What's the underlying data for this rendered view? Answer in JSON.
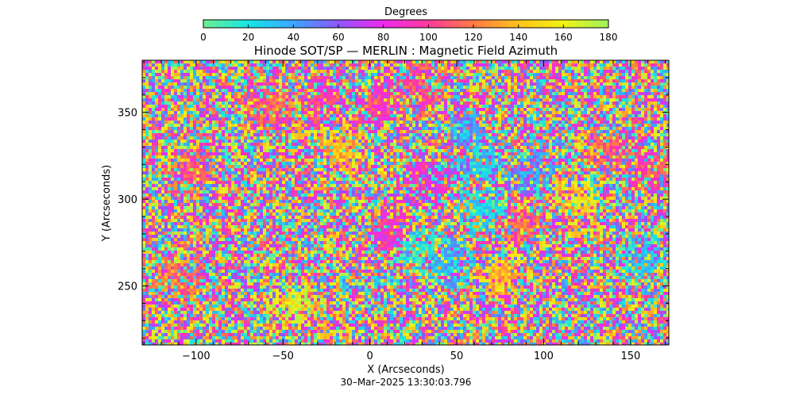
{
  "chart_data": {
    "type": "heatmap",
    "title": "Hinode SOT/SP — MERLIN : Magnetic Field Azimuth",
    "xlabel": "X (Arcseconds)",
    "ylabel": "Y (Arcseconds)",
    "xlim": [
      -131,
      172
    ],
    "ylim": [
      216,
      380
    ],
    "x_ticks": [
      -100,
      -50,
      0,
      50,
      100,
      150
    ],
    "x_tick_labels": [
      "−100",
      "−50",
      "0",
      "50",
      "100",
      "150"
    ],
    "y_ticks": [
      250,
      300,
      350
    ],
    "y_tick_labels": [
      "250",
      "300",
      "350"
    ],
    "colorbar": {
      "label": "Degrees",
      "range": [
        0,
        180
      ],
      "ticks": [
        0,
        20,
        40,
        60,
        80,
        100,
        120,
        140,
        160,
        180
      ],
      "tick_labels": [
        "0",
        "20",
        "40",
        "60",
        "80",
        "100",
        "120",
        "140",
        "160",
        "180"
      ],
      "colors": [
        "#6fef8f",
        "#14e6e6",
        "#3ca6ff",
        "#8f55ff",
        "#ee2bee",
        "#ff3b9a",
        "#ff7a44",
        "#ffc21a",
        "#f3f314",
        "#9bf25a"
      ]
    },
    "timestamp": "30–Mar–2025 13:30:03.796",
    "regions": [
      {
        "x": -110,
        "y": 255,
        "azimuth": 120
      },
      {
        "x": -105,
        "y": 315,
        "azimuth": 110
      },
      {
        "x": -30,
        "y": 358,
        "azimuth": 95
      },
      {
        "x": -15,
        "y": 330,
        "azimuth": 140
      },
      {
        "x": 5,
        "y": 355,
        "azimuth": 95
      },
      {
        "x": 28,
        "y": 365,
        "azimuth": 105
      },
      {
        "x": 32,
        "y": 312,
        "azimuth": 85
      },
      {
        "x": 10,
        "y": 282,
        "azimuth": 90
      },
      {
        "x": 28,
        "y": 272,
        "azimuth": 20
      },
      {
        "x": 45,
        "y": 265,
        "azimuth": 30
      },
      {
        "x": 55,
        "y": 340,
        "azimuth": 40
      },
      {
        "x": 62,
        "y": 322,
        "azimuth": 30
      },
      {
        "x": 65,
        "y": 295,
        "azimuth": 25
      },
      {
        "x": 85,
        "y": 285,
        "azimuth": 110
      },
      {
        "x": 75,
        "y": 258,
        "azimuth": 140
      },
      {
        "x": 92,
        "y": 320,
        "azimuth": 45
      },
      {
        "x": 120,
        "y": 302,
        "azimuth": 150
      },
      {
        "x": 135,
        "y": 328,
        "azimuth": 112
      },
      {
        "x": 158,
        "y": 318,
        "azimuth": 105
      },
      {
        "x": 155,
        "y": 265,
        "azimuth": 25
      },
      {
        "x": -60,
        "y": 355,
        "azimuth": 110
      },
      {
        "x": -45,
        "y": 240,
        "azimuth": 160
      }
    ]
  }
}
